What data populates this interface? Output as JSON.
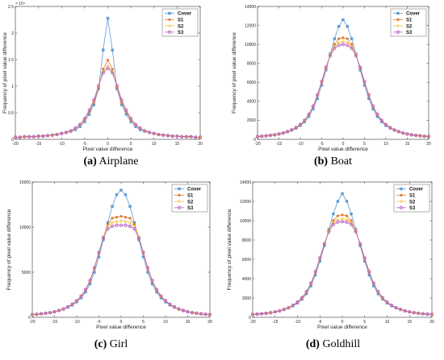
{
  "common": {
    "x_ticks": [
      -20,
      -15,
      -10,
      -5,
      0,
      5,
      10,
      15,
      20
    ],
    "xlabel": "Pixel value difference",
    "ylabel": "Frequency of pixel value difference",
    "legend": [
      "Cover",
      "S1",
      "S2",
      "S3"
    ],
    "colors": {
      "Cover": "#5b9bd5",
      "S1": "#e3782a",
      "S2": "#f2c33a",
      "S3": "#b55dc4"
    },
    "markers": {
      "Cover": "square",
      "S1": "dot",
      "S2": "plus",
      "S3": "circle"
    }
  },
  "chart_data": [
    {
      "type": "line",
      "caption_letter": "(a)",
      "caption_text": " Airplane",
      "x": [
        -20,
        -19,
        -18,
        -17,
        -16,
        -15,
        -14,
        -13,
        -12,
        -11,
        -10,
        -9,
        -8,
        -7,
        -6,
        -5,
        -4,
        -3,
        -2,
        -1,
        0,
        1,
        2,
        3,
        4,
        5,
        6,
        7,
        8,
        9,
        10,
        11,
        12,
        13,
        14,
        15,
        16,
        17,
        18,
        19,
        20
      ],
      "xlim": [
        -20,
        20
      ],
      "ylim": [
        0,
        2.5
      ],
      "y_ticks": [
        0,
        0.5,
        1,
        1.5,
        2,
        2.5
      ],
      "y_tick_labels": [
        "0",
        "0.5",
        "1",
        "1.5",
        "2",
        "2.5"
      ],
      "y_exponent": "× 10⁴",
      "xlabel": "Pixel value difference",
      "ylabel": "Frequency of pixel value difference",
      "legend_position": "top-right",
      "series": [
        {
          "name": "Cover",
          "values": [
            0.04,
            0.04,
            0.05,
            0.05,
            0.05,
            0.06,
            0.06,
            0.07,
            0.08,
            0.09,
            0.11,
            0.13,
            0.15,
            0.18,
            0.24,
            0.33,
            0.47,
            0.65,
            0.95,
            1.68,
            2.28,
            1.68,
            0.95,
            0.65,
            0.47,
            0.33,
            0.24,
            0.18,
            0.15,
            0.13,
            0.11,
            0.09,
            0.08,
            0.07,
            0.06,
            0.06,
            0.05,
            0.05,
            0.05,
            0.04,
            0.04
          ]
        },
        {
          "name": "S1",
          "values": [
            0.04,
            0.04,
            0.05,
            0.05,
            0.05,
            0.06,
            0.06,
            0.07,
            0.08,
            0.09,
            0.11,
            0.13,
            0.16,
            0.2,
            0.27,
            0.37,
            0.52,
            0.7,
            0.98,
            1.32,
            1.49,
            1.32,
            0.98,
            0.7,
            0.52,
            0.37,
            0.27,
            0.2,
            0.16,
            0.13,
            0.11,
            0.09,
            0.08,
            0.07,
            0.06,
            0.06,
            0.05,
            0.05,
            0.05,
            0.04,
            0.04
          ]
        },
        {
          "name": "S2",
          "values": [
            0.04,
            0.04,
            0.05,
            0.05,
            0.05,
            0.06,
            0.06,
            0.07,
            0.08,
            0.09,
            0.11,
            0.13,
            0.16,
            0.2,
            0.27,
            0.38,
            0.54,
            0.73,
            1.0,
            1.27,
            1.38,
            1.27,
            1.0,
            0.73,
            0.54,
            0.38,
            0.27,
            0.2,
            0.16,
            0.13,
            0.11,
            0.09,
            0.08,
            0.07,
            0.06,
            0.06,
            0.05,
            0.05,
            0.05,
            0.04,
            0.04
          ]
        },
        {
          "name": "S3",
          "values": [
            0.04,
            0.04,
            0.05,
            0.05,
            0.05,
            0.06,
            0.06,
            0.07,
            0.08,
            0.09,
            0.11,
            0.13,
            0.16,
            0.21,
            0.28,
            0.39,
            0.55,
            0.74,
            1.01,
            1.25,
            1.34,
            1.25,
            1.01,
            0.74,
            0.55,
            0.39,
            0.28,
            0.21,
            0.16,
            0.13,
            0.11,
            0.09,
            0.08,
            0.07,
            0.06,
            0.06,
            0.05,
            0.05,
            0.05,
            0.04,
            0.04
          ]
        }
      ]
    },
    {
      "type": "line",
      "caption_letter": "(b)",
      "caption_text": " Boat",
      "x": [
        -20,
        -19,
        -18,
        -17,
        -16,
        -15,
        -14,
        -13,
        -12,
        -11,
        -10,
        -9,
        -8,
        -7,
        -6,
        -5,
        -4,
        -3,
        -2,
        -1,
        0,
        1,
        2,
        3,
        4,
        5,
        6,
        7,
        8,
        9,
        10,
        11,
        12,
        13,
        14,
        15,
        16,
        17,
        18,
        19,
        20
      ],
      "xlim": [
        -20,
        20
      ],
      "ylim": [
        0,
        14000
      ],
      "y_ticks": [
        0,
        2000,
        4000,
        6000,
        8000,
        10000,
        12000,
        14000
      ],
      "y_tick_labels": [
        "0",
        "2000",
        "4000",
        "6000",
        "8000",
        "10000",
        "12000",
        "14000"
      ],
      "y_exponent": "",
      "xlabel": "Pixel value difference",
      "ylabel": "Frequency of pixel value difference",
      "legend_position": "top-right",
      "series": [
        {
          "name": "Cover",
          "values": [
            300,
            330,
            370,
            420,
            480,
            560,
            660,
            790,
            950,
            1170,
            1450,
            1850,
            2400,
            3200,
            4300,
            5700,
            7300,
            9000,
            10600,
            11900,
            12600,
            11900,
            10600,
            9000,
            7300,
            5700,
            4300,
            3200,
            2400,
            1850,
            1450,
            1170,
            950,
            790,
            660,
            560,
            480,
            420,
            370,
            330,
            300
          ]
        },
        {
          "name": "S1",
          "values": [
            300,
            330,
            370,
            420,
            480,
            560,
            670,
            810,
            990,
            1220,
            1530,
            1960,
            2570,
            3420,
            4600,
            6000,
            7500,
            8900,
            10000,
            10600,
            10700,
            10600,
            10000,
            8900,
            7500,
            6000,
            4600,
            3420,
            2570,
            1960,
            1530,
            1220,
            990,
            810,
            670,
            560,
            480,
            420,
            370,
            330,
            300
          ]
        },
        {
          "name": "S2",
          "values": [
            300,
            330,
            370,
            420,
            480,
            560,
            670,
            810,
            990,
            1230,
            1550,
            2000,
            2620,
            3480,
            4680,
            6100,
            7600,
            8900,
            9800,
            10200,
            10300,
            10200,
            9800,
            8900,
            7600,
            6100,
            4680,
            3480,
            2620,
            2000,
            1550,
            1230,
            990,
            810,
            670,
            560,
            480,
            420,
            370,
            330,
            300
          ]
        },
        {
          "name": "S3",
          "values": [
            300,
            330,
            370,
            420,
            480,
            560,
            670,
            820,
            1000,
            1240,
            1560,
            2010,
            2640,
            3500,
            4700,
            6100,
            7600,
            8800,
            9600,
            9900,
            10000,
            9900,
            9600,
            8800,
            7600,
            6100,
            4700,
            3500,
            2640,
            2010,
            1560,
            1240,
            1000,
            820,
            670,
            560,
            480,
            420,
            370,
            330,
            300
          ]
        }
      ]
    },
    {
      "type": "line",
      "caption_letter": "(c)",
      "caption_text": " Girl",
      "x": [
        -20,
        -19,
        -18,
        -17,
        -16,
        -15,
        -14,
        -13,
        -12,
        -11,
        -10,
        -9,
        -8,
        -7,
        -6,
        -5,
        -4,
        -3,
        -2,
        -1,
        0,
        1,
        2,
        3,
        4,
        5,
        6,
        7,
        8,
        9,
        10,
        11,
        12,
        13,
        14,
        15,
        16,
        17,
        18,
        19,
        20
      ],
      "xlim": [
        -20,
        20
      ],
      "ylim": [
        0,
        15000
      ],
      "y_ticks": [
        0,
        5000,
        10000,
        15000
      ],
      "y_tick_labels": [
        "0",
        "5000",
        "10000",
        "15000"
      ],
      "y_exponent": "",
      "xlabel": "Pixel value difference",
      "ylabel": "Frequency of pixel value difference",
      "legend_position": "top-right",
      "series": [
        {
          "name": "Cover",
          "values": [
            300,
            340,
            390,
            450,
            520,
            620,
            740,
            900,
            1100,
            1350,
            1700,
            2150,
            2800,
            3700,
            5000,
            6700,
            8600,
            10500,
            12300,
            13600,
            14100,
            13600,
            12300,
            10500,
            8600,
            6700,
            5000,
            3700,
            2800,
            2150,
            1700,
            1350,
            1100,
            900,
            740,
            620,
            520,
            450,
            390,
            340,
            300
          ]
        },
        {
          "name": "S1",
          "values": [
            300,
            340,
            390,
            450,
            520,
            620,
            750,
            920,
            1140,
            1420,
            1800,
            2300,
            3000,
            4000,
            5400,
            7100,
            8900,
            10300,
            11000,
            11100,
            11200,
            11100,
            11000,
            10300,
            8900,
            7100,
            5400,
            4000,
            3000,
            2300,
            1800,
            1420,
            1140,
            920,
            750,
            620,
            520,
            450,
            390,
            340,
            300
          ]
        },
        {
          "name": "S2",
          "values": [
            300,
            340,
            390,
            450,
            520,
            620,
            750,
            920,
            1150,
            1440,
            1820,
            2330,
            3050,
            4080,
            5500,
            7200,
            8900,
            10100,
            10500,
            10600,
            10700,
            10600,
            10500,
            10100,
            8900,
            7200,
            5500,
            4080,
            3050,
            2330,
            1820,
            1440,
            1150,
            920,
            750,
            620,
            520,
            450,
            390,
            340,
            300
          ]
        },
        {
          "name": "S3",
          "values": [
            300,
            340,
            390,
            450,
            520,
            620,
            760,
            930,
            1160,
            1450,
            1840,
            2360,
            3080,
            4100,
            5500,
            7200,
            8800,
            9800,
            10100,
            10200,
            10200,
            10200,
            10100,
            9800,
            8800,
            7200,
            5500,
            4100,
            3080,
            2360,
            1840,
            1450,
            1160,
            930,
            760,
            620,
            520,
            450,
            390,
            340,
            300
          ]
        }
      ]
    },
    {
      "type": "line",
      "caption_letter": "(d)",
      "caption_text": " Goldhill",
      "x": [
        -20,
        -19,
        -18,
        -17,
        -16,
        -15,
        -14,
        -13,
        -12,
        -11,
        -10,
        -9,
        -8,
        -7,
        -6,
        -5,
        -4,
        -3,
        -2,
        -1,
        0,
        1,
        2,
        3,
        4,
        5,
        6,
        7,
        8,
        9,
        10,
        11,
        12,
        13,
        14,
        15,
        16,
        17,
        18,
        19,
        20
      ],
      "xlim": [
        -20,
        20
      ],
      "ylim": [
        0,
        14000
      ],
      "y_ticks": [
        0,
        2000,
        4000,
        6000,
        8000,
        10000,
        12000,
        14000
      ],
      "y_tick_labels": [
        "0",
        "2000",
        "4000",
        "6000",
        "8000",
        "10000",
        "12000",
        "14000"
      ],
      "y_exponent": "",
      "xlabel": "Pixel value difference",
      "ylabel": "Frequency of pixel value difference",
      "legend_position": "top-right",
      "series": [
        {
          "name": "Cover",
          "values": [
            300,
            330,
            370,
            420,
            480,
            560,
            660,
            790,
            960,
            1180,
            1470,
            1870,
            2430,
            3250,
            4380,
            5800,
            7400,
            9100,
            10700,
            12000,
            12800,
            12000,
            10700,
            9100,
            7400,
            5800,
            4380,
            3250,
            2430,
            1870,
            1470,
            1180,
            960,
            790,
            660,
            560,
            480,
            420,
            370,
            330,
            300
          ]
        },
        {
          "name": "S1",
          "values": [
            300,
            330,
            370,
            420,
            480,
            560,
            670,
            810,
            990,
            1230,
            1540,
            1980,
            2600,
            3460,
            4650,
            6050,
            7550,
            8950,
            10000,
            10500,
            10600,
            10500,
            10000,
            8950,
            7550,
            6050,
            4650,
            3460,
            2600,
            1980,
            1540,
            1230,
            990,
            810,
            670,
            560,
            480,
            420,
            370,
            330,
            300
          ]
        },
        {
          "name": "S2",
          "values": [
            300,
            330,
            370,
            420,
            480,
            560,
            670,
            820,
            1000,
            1240,
            1560,
            2010,
            2640,
            3510,
            4720,
            6150,
            7650,
            8950,
            9800,
            10100,
            10200,
            10100,
            9800,
            8950,
            7650,
            6150,
            4720,
            3510,
            2640,
            2010,
            1560,
            1240,
            1000,
            820,
            670,
            560,
            480,
            420,
            370,
            330,
            300
          ]
        },
        {
          "name": "S3",
          "values": [
            300,
            330,
            370,
            420,
            480,
            560,
            670,
            820,
            1000,
            1250,
            1570,
            2030,
            2660,
            3530,
            4740,
            6150,
            7600,
            8850,
            9600,
            9850,
            9900,
            9850,
            9600,
            8850,
            7600,
            6150,
            4740,
            3530,
            2660,
            2030,
            1570,
            1250,
            1000,
            820,
            670,
            560,
            480,
            420,
            370,
            330,
            300
          ]
        }
      ]
    }
  ]
}
